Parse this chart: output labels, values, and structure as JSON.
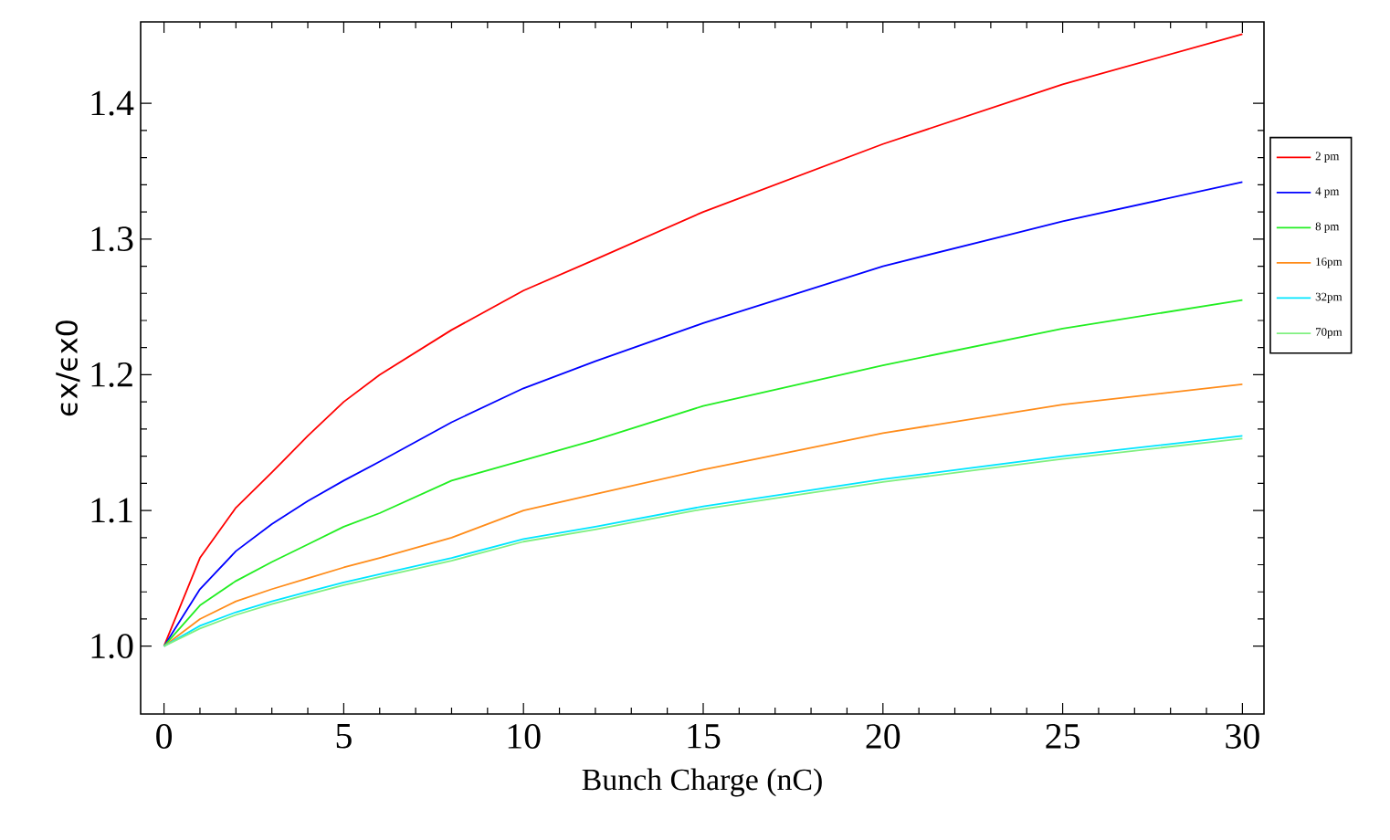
{
  "chart_data": {
    "type": "line",
    "xlabel": "Bunch Charge (nC)",
    "ylabel": "ϵx/ϵx0",
    "x": [
      0,
      1,
      2,
      3,
      4,
      5,
      6,
      8,
      10,
      12,
      15,
      20,
      25,
      30
    ],
    "series": [
      {
        "name": "2 pm",
        "color": "#ff0000",
        "values": [
          1.0,
          1.065,
          1.102,
          1.128,
          1.155,
          1.18,
          1.2,
          1.233,
          1.262,
          1.285,
          1.32,
          1.37,
          1.414,
          1.451
        ]
      },
      {
        "name": "4 pm",
        "color": "#0000ff",
        "values": [
          1.0,
          1.042,
          1.07,
          1.09,
          1.107,
          1.122,
          1.136,
          1.165,
          1.19,
          1.21,
          1.238,
          1.28,
          1.313,
          1.342
        ]
      },
      {
        "name": "8 pm",
        "color": "#22ee22",
        "values": [
          1.0,
          1.03,
          1.048,
          1.062,
          1.075,
          1.088,
          1.098,
          1.122,
          1.137,
          1.152,
          1.177,
          1.207,
          1.234,
          1.255
        ]
      },
      {
        "name": "16pm",
        "color": "#ff8c1a",
        "values": [
          1.0,
          1.02,
          1.033,
          1.042,
          1.05,
          1.058,
          1.065,
          1.08,
          1.1,
          1.112,
          1.13,
          1.157,
          1.178,
          1.193
        ]
      },
      {
        "name": "32pm",
        "color": "#00e5ff",
        "values": [
          1.0,
          1.015,
          1.025,
          1.033,
          1.04,
          1.047,
          1.053,
          1.065,
          1.079,
          1.088,
          1.103,
          1.123,
          1.14,
          1.155
        ]
      },
      {
        "name": "70pm",
        "color": "#80f080",
        "values": [
          1.0,
          1.013,
          1.023,
          1.031,
          1.038,
          1.045,
          1.051,
          1.063,
          1.077,
          1.086,
          1.101,
          1.121,
          1.138,
          1.153
        ]
      }
    ],
    "xlim": [
      -0.65,
      30.6
    ],
    "ylim": [
      0.95,
      1.46
    ],
    "xticks": [
      0,
      5,
      10,
      15,
      20,
      25,
      30
    ],
    "yticks": [
      {
        "value": 1.0,
        "label": "1.0"
      },
      {
        "value": 1.1,
        "label": "1.1"
      },
      {
        "value": 1.2,
        "label": "1.2"
      },
      {
        "value": 1.3,
        "label": "1.3"
      },
      {
        "value": 1.4,
        "label": "1.4"
      }
    ],
    "grid": false,
    "legend": "right",
    "marker": "none",
    "line_style": "solid"
  }
}
